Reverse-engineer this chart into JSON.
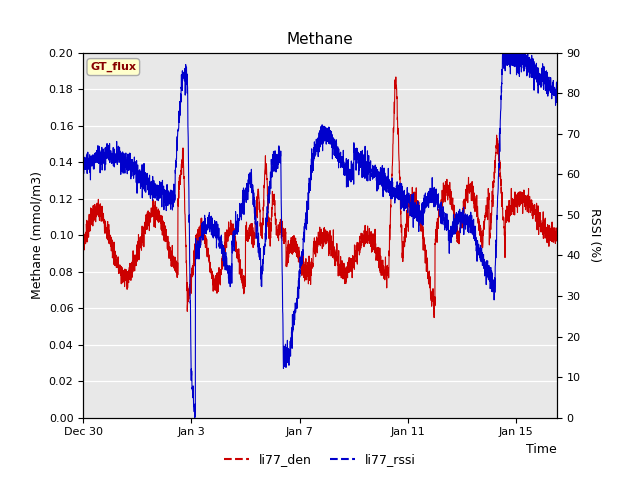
{
  "title": "Methane",
  "xlabel": "Time",
  "ylabel_left": "Methane (mmol/m3)",
  "ylabel_right": "RSSI (%)",
  "ylim_left": [
    0.0,
    0.2
  ],
  "ylim_right": [
    0,
    90
  ],
  "yticks_left": [
    0.0,
    0.02,
    0.04,
    0.06,
    0.08,
    0.1,
    0.12,
    0.14,
    0.16,
    0.18,
    0.2
  ],
  "yticks_right": [
    0,
    10,
    20,
    30,
    40,
    50,
    60,
    70,
    80,
    90
  ],
  "color_red": "#cc0000",
  "color_blue": "#0000cc",
  "legend_label_red": "li77_den",
  "legend_label_blue": "li77_rssi",
  "bg_color": "#e8e8e8",
  "gt_flux_bg": "#ffffcc",
  "gt_flux_border": "#aaaaaa",
  "gt_flux_text_color": "#880000",
  "xtick_positions": [
    0,
    4,
    8,
    12,
    16
  ],
  "xtick_labels": [
    "Dec 30",
    "Jan 3",
    "Jan 7",
    "Jan 11",
    "Jan 15"
  ],
  "xlim": [
    0,
    17.5
  ],
  "n_points": 3000
}
